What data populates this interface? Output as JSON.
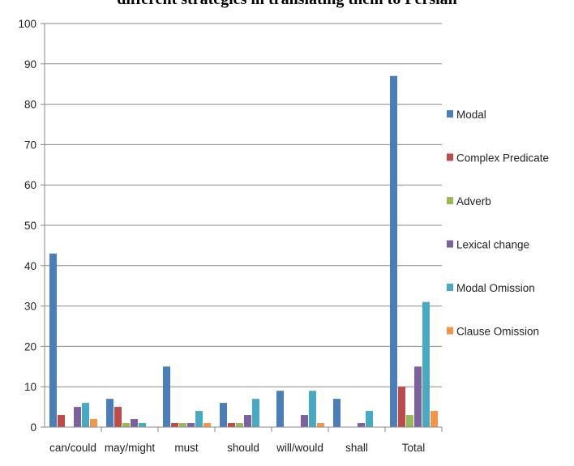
{
  "chart_data": {
    "type": "bar",
    "title": "different strategies in translating them to Persian",
    "xlabel": "",
    "ylabel": "",
    "ylim": [
      0,
      100
    ],
    "yticks": [
      "0",
      "10",
      "20",
      "30",
      "40",
      "50",
      "60",
      "70",
      "80",
      "90",
      "100"
    ],
    "grid": true,
    "legend_position": "right",
    "categories": [
      "can/could",
      "may/might",
      "must",
      "should",
      "will/would",
      "shall",
      "Total"
    ],
    "series": [
      {
        "name": "Modal",
        "color": "#4a7ebb",
        "values": [
          43,
          7,
          15,
          6,
          9,
          7,
          87
        ]
      },
      {
        "name": "Complex Predicate",
        "color": "#be4b48",
        "values": [
          3,
          5,
          1,
          1,
          0,
          0,
          10
        ]
      },
      {
        "name": "Adverb",
        "color": "#98b954",
        "values": [
          0,
          1,
          1,
          1,
          0,
          0,
          3
        ]
      },
      {
        "name": "Lexical change",
        "color": "#7d60a0",
        "values": [
          5,
          2,
          1,
          3,
          3,
          1,
          15
        ]
      },
      {
        "name": "Modal Omission",
        "color": "#46aac5",
        "values": [
          6,
          1,
          4,
          7,
          9,
          4,
          31
        ]
      },
      {
        "name": "Clause Omission",
        "color": "#f69546",
        "values": [
          2,
          0,
          1,
          0,
          1,
          0,
          4
        ]
      }
    ]
  }
}
